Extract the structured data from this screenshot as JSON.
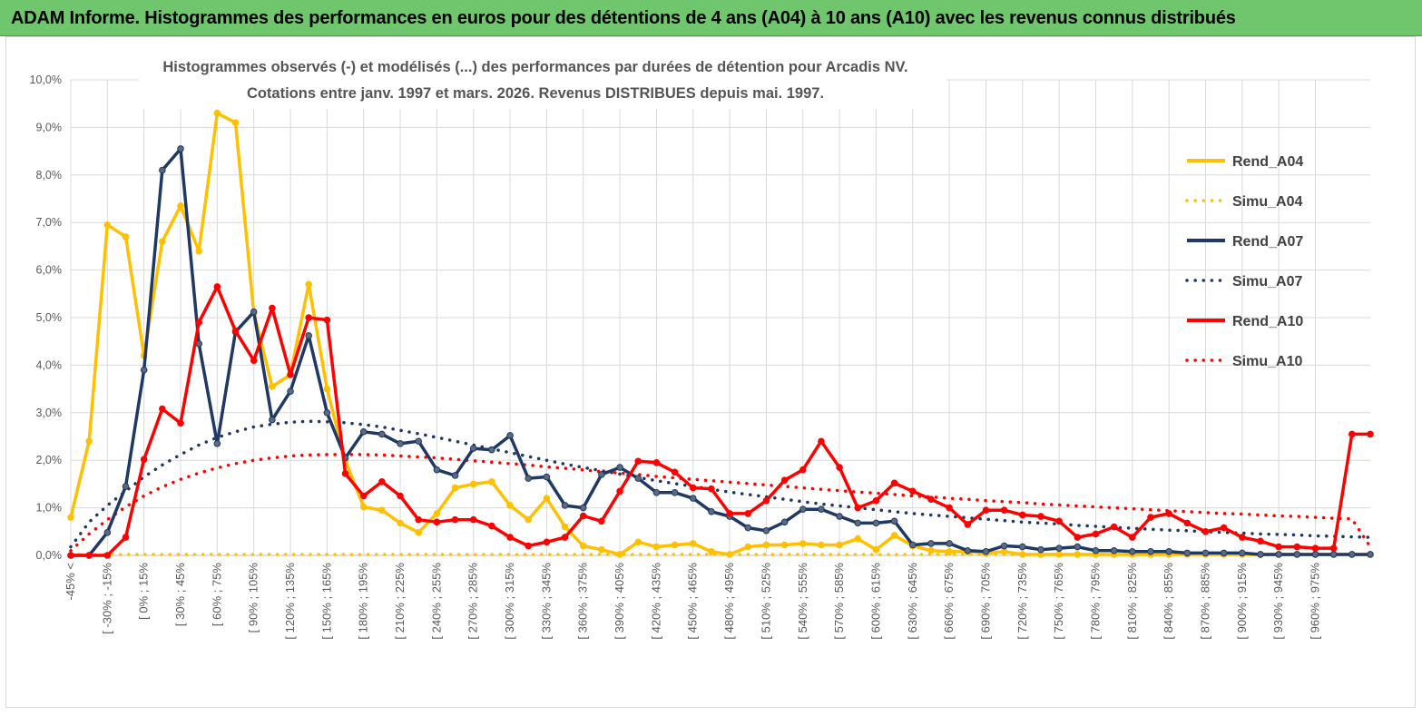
{
  "banner": {
    "title": "ADAM Informe. Histogrammes des performances en euros pour des détentions de 4 ans (A04) à 10 ans (A10) avec les revenus connus distribués"
  },
  "colors": {
    "banner_bg": "#6fc66c",
    "A04": "#FFC000",
    "A07": "#1F3864",
    "A10": "#FF0000",
    "grid": "#d9d9d9"
  },
  "chart_data": {
    "type": "line",
    "title_line1": "Histogrammes observés (-) et modélisés (...) des performances par durées de détention pour Arcadis NV.",
    "title_line2": "Cotations entre janv. 1997 et mars. 2026.  Revenus DISTRIBUES depuis mai. 1997.",
    "xlabel": "",
    "ylabel": "",
    "ylim": [
      0,
      10
    ],
    "yticks": [
      "0,0%",
      "1,0%",
      "2,0%",
      "3,0%",
      "4,0%",
      "5,0%",
      "6,0%",
      "7,0%",
      "8,0%",
      "9,0%",
      "10,0%"
    ],
    "category_count": 72,
    "tick_labels": [
      "-45% <",
      "[ -30% ; -15%",
      "[ 0% ; 15%",
      "[ 30% ; 45%",
      "[ 60% ; 75%",
      "[ 90% ; 105%",
      "[ 120% ; 135%",
      "[ 150% ; 165%",
      "[ 180% ; 195%",
      "[ 210% ; 225%",
      "[ 240% ; 255%",
      "[ 270% ; 285%",
      "[ 300% ; 315%",
      "[ 330% ; 345%",
      "[ 360% ; 375%",
      "[ 390% ; 405%",
      "[ 420% ; 435%",
      "[ 450% ; 465%",
      "[ 480% ; 495%",
      "[ 510% ; 525%",
      "[ 540% ; 555%",
      "[ 570% ; 585%",
      "[ 600% ; 615%",
      "[ 630% ; 645%",
      "[ 660% ; 675%",
      "[ 690% ; 705%",
      "[ 720% ; 735%",
      "[ 750% ; 765%",
      "[ 780% ; 795%",
      "[ 810% ; 825%",
      "[ 840% ; 855%",
      "[ 870% ; 885%",
      "[ 900% ; 915%",
      "[ 930% ; 945%",
      "[ 960% ; 975%"
    ],
    "tick_label_index": [
      0,
      2,
      4,
      6,
      8,
      10,
      12,
      14,
      16,
      18,
      20,
      22,
      24,
      26,
      28,
      30,
      32,
      34,
      36,
      38,
      40,
      42,
      44,
      46,
      48,
      50,
      52,
      54,
      56,
      58,
      60,
      62,
      64,
      66,
      68
    ],
    "series": [
      {
        "name": "Rend_A04",
        "style": "solid",
        "color": "#FFC000",
        "values": [
          0.8,
          2.4,
          6.95,
          6.7,
          4.2,
          6.6,
          7.35,
          6.4,
          9.3,
          9.1,
          5.1,
          3.55,
          3.8,
          5.7,
          3.5,
          2.0,
          1.02,
          0.95,
          0.68,
          0.48,
          0.88,
          1.42,
          1.5,
          1.55,
          1.05,
          0.75,
          1.2,
          0.6,
          0.2,
          0.12,
          0.02,
          0.28,
          0.18,
          0.22,
          0.25,
          0.08,
          0.02,
          0.18,
          0.22,
          0.22,
          0.25,
          0.22,
          0.22,
          0.35,
          0.12,
          0.42,
          0.2,
          0.1,
          0.08,
          0.08,
          0.04,
          0.08,
          0.02,
          0.02,
          0.02,
          0.02,
          0.02,
          0.02,
          0.02,
          0.02,
          0.02,
          0.02,
          0.02,
          0.02,
          0.02,
          0.02,
          0.02,
          0.02,
          0.02,
          0.02,
          0.02,
          0.02
        ]
      },
      {
        "name": "Simu_A04",
        "style": "dotted",
        "color": "#FFC000",
        "values": [
          0.02,
          0.02,
          0.02,
          0.02,
          0.02,
          0.02,
          0.02,
          0.02,
          0.02,
          0.02,
          0.02,
          0.02,
          0.02,
          0.02,
          0.02,
          0.02,
          0.02,
          0.02,
          0.02,
          0.02,
          0.02,
          0.02,
          0.02,
          0.02,
          0.02,
          0.02,
          0.02,
          0.02,
          0.02,
          0.02,
          0.02,
          0.02,
          0.02,
          0.02,
          0.02,
          0.02,
          0.02,
          0.02,
          0.02,
          0.02,
          0.02,
          0.02,
          0.02,
          0.02,
          0.02,
          0.02,
          0.02,
          0.02,
          0.02,
          0.02,
          0.02,
          0.02,
          0.02,
          0.02,
          0.02,
          0.02,
          0.02,
          0.02,
          0.02,
          0.02,
          0.02,
          0.02,
          0.02,
          0.02,
          0.02,
          0.02,
          0.02,
          0.02,
          0.02,
          0.02,
          0.02,
          0.02
        ]
      },
      {
        "name": "Rend_A07",
        "style": "solid",
        "color": "#1F3864",
        "values": [
          0.0,
          0.0,
          0.48,
          1.45,
          3.9,
          8.1,
          8.55,
          4.45,
          2.35,
          4.7,
          5.12,
          2.85,
          3.45,
          4.62,
          3.0,
          2.05,
          2.6,
          2.55,
          2.35,
          2.4,
          1.8,
          1.68,
          2.25,
          2.22,
          2.52,
          1.62,
          1.65,
          1.05,
          1.0,
          1.7,
          1.85,
          1.62,
          1.32,
          1.32,
          1.2,
          0.92,
          0.82,
          0.58,
          0.52,
          0.7,
          0.97,
          0.97,
          0.82,
          0.68,
          0.68,
          0.72,
          0.22,
          0.25,
          0.25,
          0.1,
          0.08,
          0.2,
          0.18,
          0.12,
          0.15,
          0.18,
          0.1,
          0.1,
          0.08,
          0.08,
          0.08,
          0.05,
          0.05,
          0.05,
          0.05,
          0.02,
          0.02,
          0.02,
          0.02,
          0.02,
          0.02,
          0.02
        ]
      },
      {
        "name": "Simu_A07",
        "style": "dotted",
        "color": "#1F3864",
        "values": [
          0.18,
          0.7,
          1.05,
          1.35,
          1.65,
          1.9,
          2.12,
          2.32,
          2.48,
          2.6,
          2.7,
          2.76,
          2.8,
          2.82,
          2.81,
          2.79,
          2.75,
          2.7,
          2.63,
          2.56,
          2.48,
          2.4,
          2.32,
          2.24,
          2.16,
          2.08,
          2.0,
          1.92,
          1.85,
          1.78,
          1.71,
          1.64,
          1.57,
          1.51,
          1.45,
          1.39,
          1.33,
          1.28,
          1.23,
          1.18,
          1.13,
          1.08,
          1.04,
          1.0,
          0.96,
          0.92,
          0.88,
          0.85,
          0.82,
          0.79,
          0.76,
          0.73,
          0.7,
          0.68,
          0.66,
          0.63,
          0.61,
          0.59,
          0.57,
          0.55,
          0.53,
          0.52,
          0.5,
          0.48,
          0.47,
          0.45,
          0.44,
          0.43,
          0.41,
          0.4,
          0.39,
          0.38
        ]
      },
      {
        "name": "Rend_A10",
        "style": "solid",
        "color": "#FF0000",
        "values": [
          0.0,
          0.0,
          0.0,
          0.38,
          2.02,
          3.08,
          2.78,
          4.9,
          5.65,
          4.72,
          4.1,
          5.2,
          3.8,
          5.0,
          4.95,
          1.72,
          1.25,
          1.55,
          1.25,
          0.75,
          0.7,
          0.75,
          0.75,
          0.62,
          0.38,
          0.2,
          0.28,
          0.38,
          0.83,
          0.72,
          1.35,
          1.98,
          1.95,
          1.75,
          1.42,
          1.4,
          0.88,
          0.88,
          1.15,
          1.58,
          1.8,
          2.4,
          1.85,
          1.0,
          1.15,
          1.52,
          1.35,
          1.18,
          1.0,
          0.65,
          0.95,
          0.95,
          0.85,
          0.82,
          0.72,
          0.38,
          0.45,
          0.6,
          0.38,
          0.8,
          0.88,
          0.68,
          0.5,
          0.58,
          0.38,
          0.3,
          0.18,
          0.18,
          0.15,
          0.15,
          2.55,
          2.55
        ]
      },
      {
        "name": "Simu_A10",
        "style": "dotted",
        "color": "#FF0000",
        "values": [
          0.1,
          0.45,
          0.75,
          1.02,
          1.25,
          1.44,
          1.6,
          1.73,
          1.84,
          1.93,
          2.0,
          2.05,
          2.09,
          2.11,
          2.12,
          2.12,
          2.12,
          2.11,
          2.09,
          2.07,
          2.05,
          2.02,
          1.99,
          1.96,
          1.93,
          1.9,
          1.86,
          1.83,
          1.8,
          1.76,
          1.73,
          1.7,
          1.66,
          1.63,
          1.6,
          1.57,
          1.54,
          1.51,
          1.48,
          1.45,
          1.42,
          1.39,
          1.36,
          1.33,
          1.31,
          1.28,
          1.25,
          1.23,
          1.2,
          1.18,
          1.15,
          1.13,
          1.11,
          1.08,
          1.06,
          1.04,
          1.02,
          1.0,
          0.98,
          0.96,
          0.94,
          0.92,
          0.9,
          0.88,
          0.87,
          0.85,
          0.83,
          0.82,
          0.8,
          0.78,
          0.77,
          0.18
        ]
      }
    ],
    "legend": [
      "Rend_A04",
      "Simu_A04",
      "Rend_A07",
      "Simu_A07",
      "Rend_A10",
      "Simu_A10"
    ],
    "legend_position": "right"
  }
}
